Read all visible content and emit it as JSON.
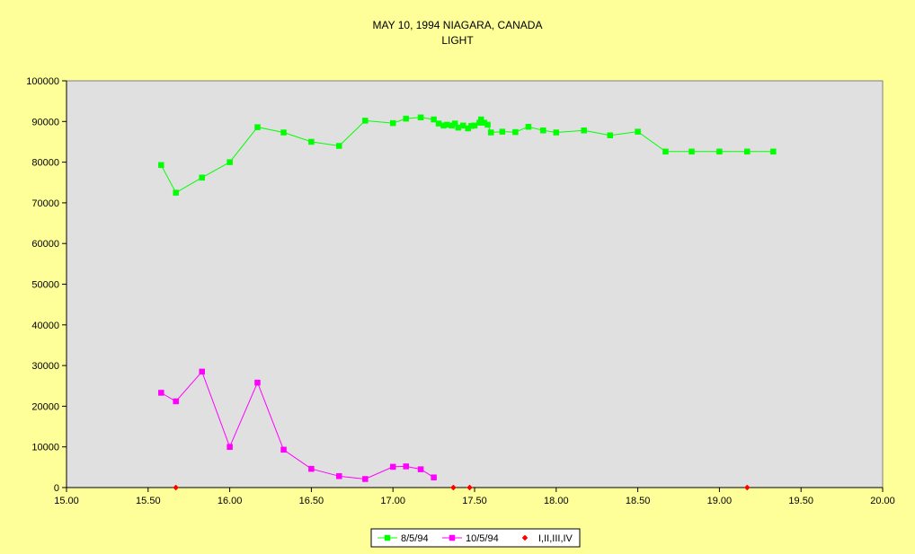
{
  "chart_data": {
    "type": "line",
    "title": "MAY 10, 1994 NIAGARA, CANADA",
    "subtitle": "LIGHT",
    "xlabel": "",
    "ylabel": "",
    "xlim": [
      15.0,
      20.0
    ],
    "ylim": [
      0,
      100000
    ],
    "x_ticks": [
      "15.00",
      "15.50",
      "16.00",
      "16.50",
      "17.00",
      "17.50",
      "18.00",
      "18.50",
      "19.00",
      "19.50",
      "20.00"
    ],
    "y_ticks": [
      "0",
      "10000",
      "20000",
      "30000",
      "40000",
      "50000",
      "60000",
      "70000",
      "80000",
      "90000",
      "100000"
    ],
    "grid": false,
    "legend_position": "bottom",
    "series": [
      {
        "name": "8/5/94",
        "color": "#00ff00",
        "marker": "square",
        "line": true,
        "points": [
          [
            15.58,
            79300
          ],
          [
            15.67,
            72500
          ],
          [
            15.83,
            76200
          ],
          [
            16.0,
            80000
          ],
          [
            16.17,
            88600
          ],
          [
            16.33,
            87300
          ],
          [
            16.5,
            85000
          ],
          [
            16.67,
            84000
          ],
          [
            16.83,
            90200
          ],
          [
            17.0,
            89600
          ],
          [
            17.08,
            90700
          ],
          [
            17.17,
            91000
          ],
          [
            17.25,
            90500
          ],
          [
            17.28,
            89500
          ],
          [
            17.31,
            89000
          ],
          [
            17.33,
            89200
          ],
          [
            17.36,
            89000
          ],
          [
            17.38,
            89500
          ],
          [
            17.4,
            88500
          ],
          [
            17.43,
            89000
          ],
          [
            17.46,
            88300
          ],
          [
            17.48,
            88900
          ],
          [
            17.5,
            89000
          ],
          [
            17.53,
            89700
          ],
          [
            17.54,
            90500
          ],
          [
            17.56,
            89700
          ],
          [
            17.58,
            89200
          ],
          [
            17.6,
            87300
          ],
          [
            17.67,
            87500
          ],
          [
            17.75,
            87400
          ],
          [
            17.83,
            88700
          ],
          [
            17.92,
            87800
          ],
          [
            18.0,
            87300
          ],
          [
            18.17,
            87800
          ],
          [
            18.33,
            86600
          ],
          [
            18.5,
            87500
          ],
          [
            18.67,
            82600
          ],
          [
            18.83,
            82600
          ],
          [
            19.0,
            82600
          ],
          [
            19.17,
            82600
          ],
          [
            19.33,
            82600
          ]
        ]
      },
      {
        "name": "10/5/94",
        "color": "#ff00ff",
        "marker": "square",
        "line": true,
        "points": [
          [
            15.58,
            23300
          ],
          [
            15.67,
            21200
          ],
          [
            15.83,
            28500
          ],
          [
            16.0,
            10000
          ],
          [
            16.17,
            25800
          ],
          [
            16.33,
            9300
          ],
          [
            16.5,
            4600
          ],
          [
            16.67,
            2800
          ],
          [
            16.83,
            2100
          ],
          [
            17.0,
            5100
          ],
          [
            17.08,
            5200
          ],
          [
            17.17,
            4500
          ],
          [
            17.25,
            2500
          ]
        ]
      },
      {
        "name": "I,II,III,IV",
        "color": "#ff0000",
        "marker": "diamond",
        "line": false,
        "points": [
          [
            15.67,
            0
          ],
          [
            17.37,
            0
          ],
          [
            17.47,
            0
          ],
          [
            19.17,
            0
          ]
        ]
      }
    ]
  }
}
